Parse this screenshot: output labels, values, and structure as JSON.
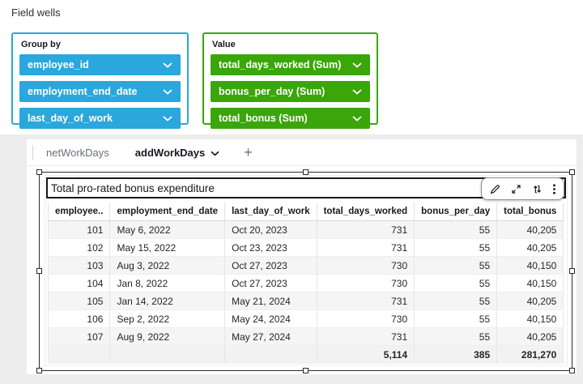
{
  "header": {
    "title": "Field wells"
  },
  "field_wells": {
    "group_by": {
      "label": "Group by",
      "accent": "#2aa7dc",
      "items": [
        "employee_id",
        "employment_end_date",
        "last_day_of_work"
      ]
    },
    "value": {
      "label": "Value",
      "accent": "#3aa60a",
      "items": [
        "total_days_worked (Sum)",
        "bonus_per_day (Sum)",
        "total_bonus (Sum)"
      ]
    }
  },
  "tabs": {
    "items": [
      {
        "label": "netWorkDays",
        "active": false
      },
      {
        "label": "addWorkDays",
        "active": true
      }
    ],
    "add_label": "+"
  },
  "visual": {
    "title": "Total pro-rated bonus expenditure",
    "toolbar_icons": [
      "pencil-icon",
      "maximize-icon",
      "move-icon",
      "menu-icon"
    ],
    "table": {
      "columns": [
        "employee..",
        "employment_end_date",
        "last_day_of_work",
        "total_days_worked",
        "bonus_per_day",
        "total_bonus"
      ],
      "rows": [
        [
          "101",
          "May 6, 2022",
          "Oct 20, 2023",
          "731",
          "55",
          "40,205"
        ],
        [
          "102",
          "May 15, 2022",
          "Oct 23, 2023",
          "731",
          "55",
          "40,205"
        ],
        [
          "103",
          "Aug 3, 2022",
          "Oct 27, 2023",
          "730",
          "55",
          "40,150"
        ],
        [
          "104",
          "Jan 8, 2022",
          "Oct 27, 2023",
          "730",
          "55",
          "40,150"
        ],
        [
          "105",
          "Jan 14, 2022",
          "May 21, 2024",
          "731",
          "55",
          "40,205"
        ],
        [
          "106",
          "Sep 2, 2022",
          "May 24, 2024",
          "730",
          "55",
          "40,150"
        ],
        [
          "107",
          "Aug 9, 2022",
          "May 27, 2024",
          "731",
          "55",
          "40,205"
        ]
      ],
      "totals": [
        "",
        "",
        "",
        "5,114",
        "385",
        "281,270"
      ]
    }
  }
}
